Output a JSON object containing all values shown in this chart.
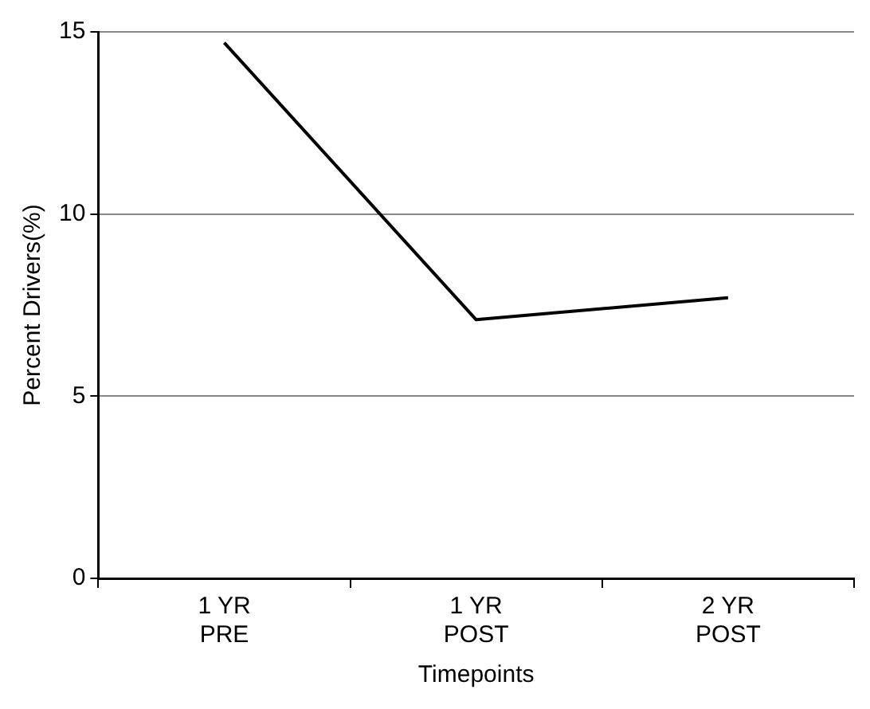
{
  "chart_data": {
    "type": "line",
    "xlabel": "Timepoints",
    "ylabel": "Percent Drivers(%)",
    "categories": [
      "1 YR\nPRE",
      "1 YR\nPOST",
      "2 YR\nPOST"
    ],
    "series": [
      {
        "color": "#000000",
        "values": [
          14.7,
          7.1,
          7.7
        ]
      }
    ],
    "ylim": [
      0,
      15
    ],
    "yticks": [
      0,
      5,
      10,
      15
    ],
    "grid": "y",
    "legend": false,
    "marker": "none",
    "line_style": "solid"
  }
}
